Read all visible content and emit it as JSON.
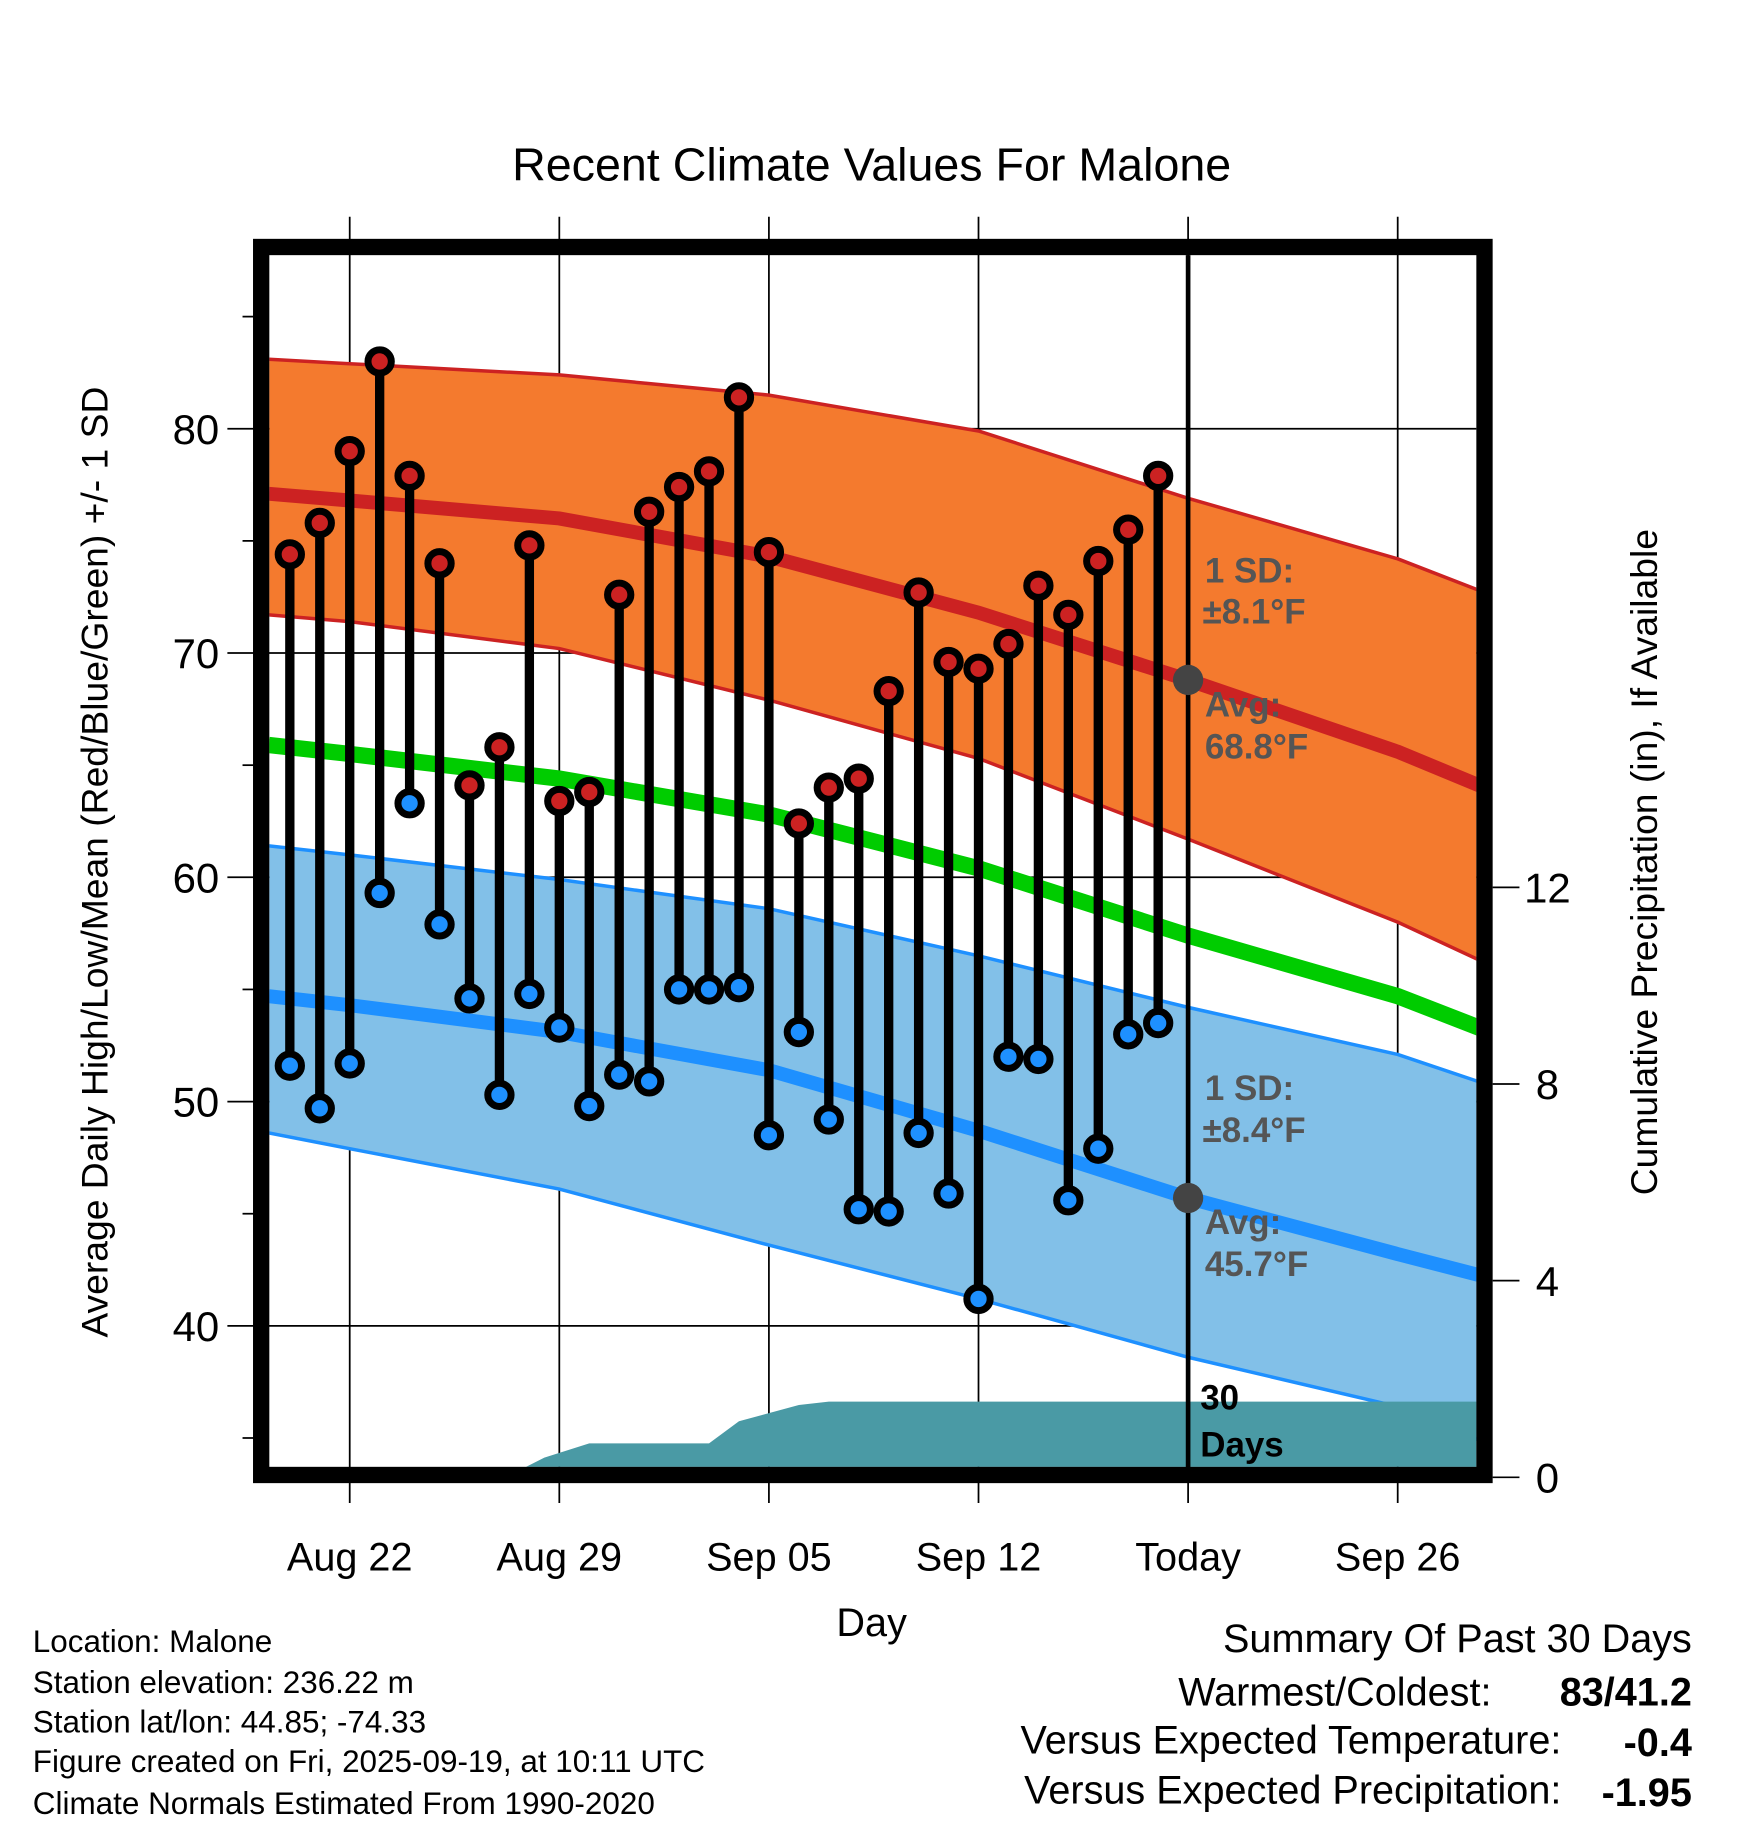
{
  "chart_data": {
    "type": "line",
    "title": "Recent Climate Values For Malone",
    "xlabel": "Day",
    "ylabel": "Average Daily High/Low/Mean (Red/Blue/Green) +/- 1 SD",
    "y2label": "Cumulative Precipitation (in), If Available",
    "ylim": [
      33.7,
      87.7
    ],
    "y2lim": [
      0,
      12
    ],
    "yticks": [
      40,
      50,
      60,
      70,
      80
    ],
    "y2ticks": [
      0,
      4,
      8,
      12
    ],
    "xticks": [
      {
        "label": "Aug 22",
        "day": 0
      },
      {
        "label": "Aug 29",
        "day": 7
      },
      {
        "label": "Sep 05",
        "day": 14
      },
      {
        "label": "Sep 12",
        "day": 21
      },
      {
        "label": "Today",
        "day": 28
      },
      {
        "label": "Sep 26",
        "day": 35
      }
    ],
    "xlim_days": [
      -2.7,
      37.9
    ],
    "grid": true,
    "daily": {
      "dates": [
        "Aug 20",
        "Aug 21",
        "Aug 22",
        "Aug 23",
        "Aug 24",
        "Aug 25",
        "Aug 26",
        "Aug 27",
        "Aug 28",
        "Aug 29",
        "Aug 30",
        "Aug 31",
        "Sep 01",
        "Sep 02",
        "Sep 03",
        "Sep 04",
        "Sep 05",
        "Sep 06",
        "Sep 07",
        "Sep 08",
        "Sep 09",
        "Sep 10",
        "Sep 11",
        "Sep 12",
        "Sep 13",
        "Sep 14",
        "Sep 15",
        "Sep 16",
        "Sep 17",
        "Sep 18"
      ],
      "first_day": -2,
      "highs": [
        74.4,
        75.8,
        79.0,
        83.0,
        77.9,
        74.0,
        64.1,
        65.8,
        74.8,
        63.4,
        63.8,
        72.6,
        76.3,
        77.4,
        78.1,
        81.4,
        74.5,
        62.4,
        64.0,
        64.4,
        68.3,
        72.7,
        69.6,
        69.3,
        70.4,
        73.0,
        71.7,
        74.1,
        75.5,
        77.9
      ],
      "lows": [
        51.6,
        49.7,
        51.7,
        59.3,
        63.3,
        57.9,
        54.6,
        50.3,
        54.8,
        53.3,
        49.8,
        51.2,
        50.9,
        55.0,
        55.0,
        55.1,
        48.5,
        53.1,
        49.2,
        45.2,
        45.1,
        48.6,
        45.9,
        41.2,
        52.0,
        51.9,
        45.6,
        47.9,
        53.0,
        53.5
      ]
    },
    "normals": {
      "x_days": [
        -2.7,
        0,
        7,
        14,
        21,
        28,
        35,
        37.9
      ],
      "high_mean": [
        77.1,
        76.8,
        76.0,
        74.3,
        71.8,
        68.8,
        65.6,
        64.0
      ],
      "high_upper": [
        83.1,
        82.9,
        82.4,
        81.5,
        79.9,
        76.9,
        74.2,
        72.7
      ],
      "high_lower": [
        71.7,
        71.4,
        70.2,
        67.9,
        65.3,
        61.7,
        58.0,
        56.2
      ],
      "mean": [
        65.9,
        65.5,
        64.4,
        62.8,
        60.4,
        57.4,
        54.7,
        53.2
      ],
      "low_mean": [
        54.7,
        54.3,
        53.1,
        51.4,
        48.7,
        45.7,
        43.2,
        42.2
      ],
      "low_upper": [
        61.4,
        61.0,
        59.9,
        58.6,
        56.5,
        54.2,
        52.1,
        50.8
      ],
      "low_lower": [
        48.6,
        47.9,
        46.1,
        43.6,
        41.2,
        38.6,
        36.4,
        34.8
      ]
    },
    "precip": {
      "x_days": [
        -2.7,
        5.2,
        6.5,
        8,
        12,
        13,
        15,
        16,
        37.9
      ],
      "cumulative_in": [
        0,
        0,
        0.4,
        0.69,
        0.69,
        1.14,
        1.47,
        1.54,
        1.54
      ]
    },
    "annotations": {
      "high_sd_label": "1 SD:",
      "high_sd_value": "±8.1°F",
      "high_avg_label": "Avg:",
      "high_avg_value": "68.8°F",
      "low_sd_label": "1 SD:",
      "low_sd_value": "±8.4°F",
      "low_avg_label": "Avg:",
      "low_avg_value": "45.7°F",
      "today_high_avg": 68.8,
      "today_low_avg": 45.7,
      "period_line1": "30",
      "period_line2": "Days"
    },
    "colors": {
      "high_band": "#F47A2E",
      "high_line": "#CC2222",
      "mean_line": "#00CC00",
      "low_band": "#82C0E8",
      "low_line": "#1E90FF",
      "precip": "#4A9AA5",
      "annotation": "#555555",
      "today_dot": "#444444"
    }
  },
  "info": {
    "location": "Location: Malone",
    "elevation": "Station elevation: 236.22 m",
    "latlon": "Station lat/lon: 44.85; -74.33",
    "created": "Figure created on Fri, 2025-09-19, at 10:11 UTC",
    "normals": "Climate Normals Estimated From 1990-2020"
  },
  "summary": {
    "title": "Summary Of Past 30 Days",
    "warmest_label": "Warmest/Coldest:",
    "warmest_value": "83/41.2",
    "temp_label": "Versus Expected Temperature:",
    "temp_value": "-0.4",
    "temp_color": "#1E90FF",
    "precip_label": "Versus Expected Precipitation:",
    "precip_value": "-1.95",
    "precip_color": "#A0522D"
  }
}
